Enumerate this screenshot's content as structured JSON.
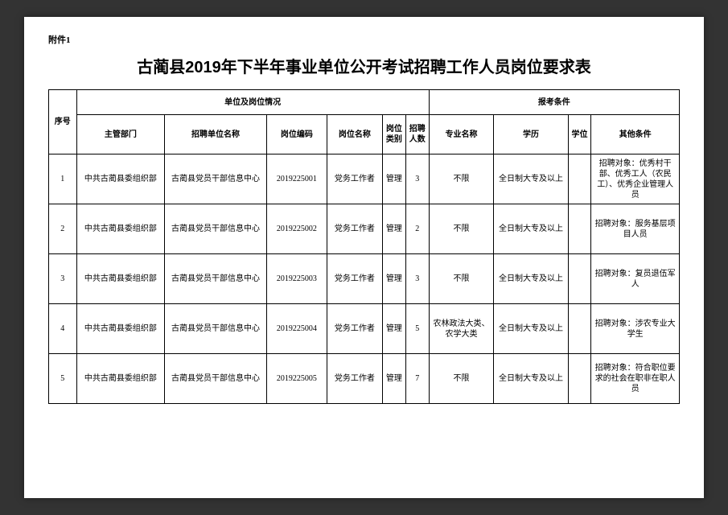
{
  "attachment_label": "附件1",
  "title": "古蔺县2019年下半年事业单位公开考试招聘工作人员岗位要求表",
  "headers": {
    "seq": "序号",
    "unit_section": "单位及岗位情况",
    "apply_section": "报考条件",
    "dept": "主管部门",
    "org": "招聘单位名称",
    "code": "岗位编码",
    "position": "岗位名称",
    "type": "岗位类别",
    "num": "招聘人数",
    "major": "专业名称",
    "edu": "学历",
    "degree": "学位",
    "other": "其他条件"
  },
  "rows": [
    {
      "seq": "1",
      "dept": "中共古蔺县委组织部",
      "org": "古蔺县党员干部信息中心",
      "code": "2019225001",
      "position": "党务工作者",
      "type": "管理",
      "num": "3",
      "major": "不限",
      "edu": "全日制大专及以上",
      "degree": "",
      "other": "招聘对象：优秀村干部、优秀工人（农民工）、优秀企业管理人员"
    },
    {
      "seq": "2",
      "dept": "中共古蔺县委组织部",
      "org": "古蔺县党员干部信息中心",
      "code": "2019225002",
      "position": "党务工作者",
      "type": "管理",
      "num": "2",
      "major": "不限",
      "edu": "全日制大专及以上",
      "degree": "",
      "other": "招聘对象：服务基层项目人员"
    },
    {
      "seq": "3",
      "dept": "中共古蔺县委组织部",
      "org": "古蔺县党员干部信息中心",
      "code": "2019225003",
      "position": "党务工作者",
      "type": "管理",
      "num": "3",
      "major": "不限",
      "edu": "全日制大专及以上",
      "degree": "",
      "other": "招聘对象：复员退伍军人"
    },
    {
      "seq": "4",
      "dept": "中共古蔺县委组织部",
      "org": "古蔺县党员干部信息中心",
      "code": "2019225004",
      "position": "党务工作者",
      "type": "管理",
      "num": "5",
      "major": "农林政法大类、农学大类",
      "edu": "全日制大专及以上",
      "degree": "",
      "other": "招聘对象：涉农专业大学生"
    },
    {
      "seq": "5",
      "dept": "中共古蔺县委组织部",
      "org": "古蔺县党员干部信息中心",
      "code": "2019225005",
      "position": "党务工作者",
      "type": "管理",
      "num": "7",
      "major": "不限",
      "edu": "全日制大专及以上",
      "degree": "",
      "other": "招聘对象：符合职位要求的社会在职非在职人员"
    }
  ]
}
